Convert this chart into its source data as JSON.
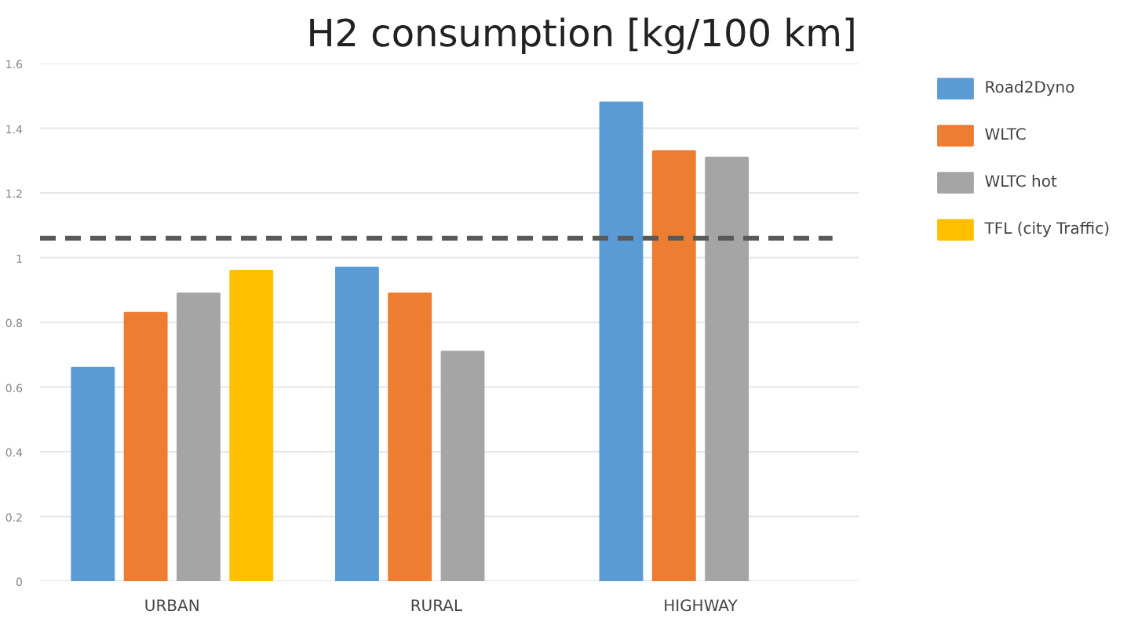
{
  "chart_data": {
    "type": "bar",
    "title": "H2 consumption [kg/100 km]",
    "categories": [
      "URBAN",
      "RURAL",
      "HIGHWAY"
    ],
    "series": [
      {
        "name": "Road2Dyno",
        "color": "#5b9bd5",
        "values": [
          0.66,
          0.97,
          1.48
        ]
      },
      {
        "name": "WLTC",
        "color": "#ed7d31",
        "values": [
          0.83,
          0.89,
          1.33
        ]
      },
      {
        "name": "WLTC hot",
        "color": "#a5a5a5",
        "values": [
          0.89,
          0.71,
          1.31
        ]
      },
      {
        "name": "TFL (city Traffic)",
        "color": "#ffc000",
        "values": [
          0.96,
          null,
          null
        ]
      }
    ],
    "ylim": [
      0,
      1.6
    ],
    "yticks": [
      0,
      0.2,
      0.4,
      0.6,
      0.8,
      1,
      1.2,
      1.4,
      1.6
    ],
    "ref_lines": [
      {
        "axis": "y",
        "value": 1.06,
        "color": "#595959",
        "line_style": "dashed"
      }
    ],
    "grid": "y",
    "legend": "right"
  }
}
